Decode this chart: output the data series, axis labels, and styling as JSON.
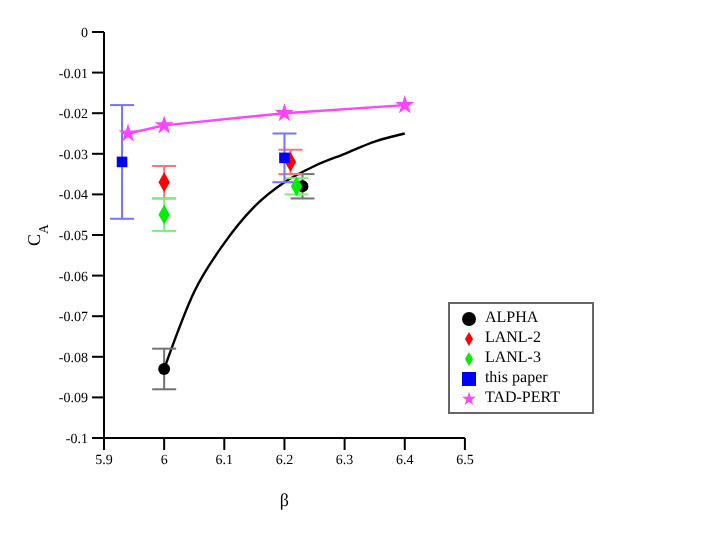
{
  "chart_data": {
    "type": "scatter",
    "xlabel": "β",
    "ylabel": "C$_{A}$",
    "xlim": [
      5.9,
      6.5
    ],
    "xticks": [
      5.9,
      6,
      6.1,
      6.2,
      6.3,
      6.4,
      6.5
    ],
    "ylim": [
      -0.1,
      0
    ],
    "yticks": [
      -0.1,
      -0.09,
      -0.08,
      -0.07,
      -0.06,
      -0.05,
      -0.04,
      -0.03,
      -0.02,
      -0.01,
      0
    ],
    "grid": false,
    "legend": "bottom right",
    "series": [
      {
        "type": "line",
        "color": "#000000",
        "marker": "none",
        "x": [
          6.0,
          6.05,
          6.1,
          6.15,
          6.2,
          6.25,
          6.3,
          6.35,
          6.4
        ],
        "values": [
          -0.083,
          -0.064,
          -0.052,
          -0.043,
          -0.037,
          -0.033,
          -0.03,
          -0.027,
          -0.025
        ]
      },
      {
        "name": "ALPHA",
        "color": "#000000",
        "marker": "circle",
        "x": [
          6.0,
          6.23
        ],
        "values": [
          -0.083,
          -0.038
        ],
        "errors": [
          0.005,
          0.003
        ]
      },
      {
        "name": "LANL-2",
        "color": "#ff0000",
        "marker": "diamond",
        "x": [
          6.0,
          6.21
        ],
        "values": [
          -0.037,
          -0.032
        ],
        "errors": [
          0.004,
          0.003
        ]
      },
      {
        "name": "LANL-3",
        "color": "#00ee00",
        "marker": "diamond",
        "x": [
          6.0,
          6.22
        ],
        "values": [
          -0.045,
          -0.038
        ],
        "errors": [
          0.004,
          0.002
        ]
      },
      {
        "name": "this paper",
        "color": "#0000ff",
        "marker": "square",
        "x": [
          5.93,
          6.2
        ],
        "values": [
          -0.032,
          -0.031
        ],
        "errors": [
          0.014,
          0.006
        ]
      },
      {
        "name": "TAD-PERT",
        "type": "line",
        "color": "#ff44ff",
        "marker": "star",
        "x": [
          5.94,
          6.0,
          6.2,
          6.4
        ],
        "values": [
          -0.025,
          -0.023,
          -0.02,
          -0.018
        ]
      }
    ]
  }
}
